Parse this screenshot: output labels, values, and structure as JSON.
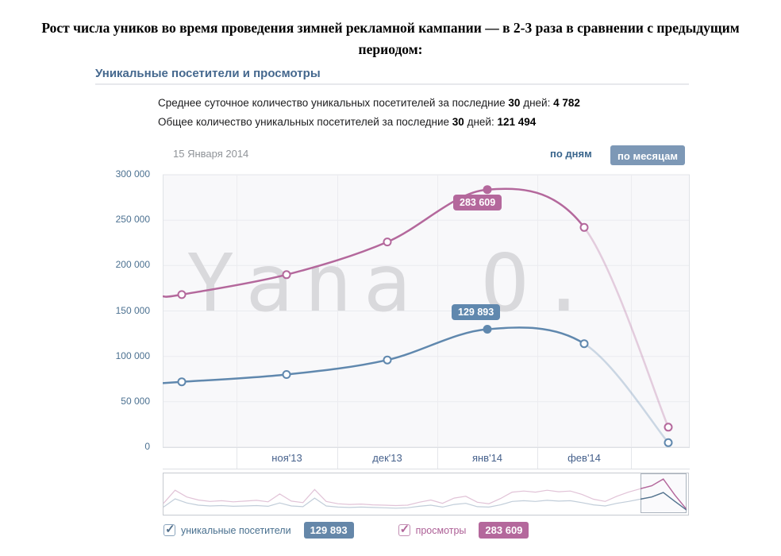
{
  "title": {
    "text": "Рост числа уников во время проведения зимней рекламной кампании — в 2-3 раза в сравнении с предыдущим периодом:"
  },
  "section": {
    "header": "Уникальные посетители и просмотры"
  },
  "stats": {
    "avg": {
      "text": "Среднее суточное количество уникальных посетителей за последние ",
      "days": "30",
      "after_days": " дней: ",
      "value": "4 782"
    },
    "total": {
      "text": "Общее количество уникальных посетителей за последние ",
      "days": "30",
      "after_days": " дней: ",
      "value": "121 494"
    }
  },
  "controls": {
    "date": "15 Января 2014",
    "by_days": "по дням",
    "by_months": "по месяцам"
  },
  "watermark": "Yana O.",
  "icons": {
    "check": "✓"
  },
  "chart_data": {
    "type": "line",
    "title": "Уникальные посетители и просмотры",
    "x_labels": [
      "ноя'13",
      "дек'13",
      "янв'14",
      "фев'14"
    ],
    "y_ticks": [
      "300 000",
      "250 000",
      "200 000",
      "150 000",
      "100 000",
      "50 000",
      "0"
    ],
    "ylim": [
      0,
      300000
    ],
    "grid": true,
    "legend_position": "bottom",
    "highlight_index": 3,
    "series": [
      {
        "name": "просмотры",
        "color": "#b4689c",
        "edge": 166000,
        "values": [
          168000,
          190000,
          226000,
          283609,
          242000,
          22000
        ],
        "label": "283 609"
      },
      {
        "name": "уникальные посетители",
        "color": "#6088ae",
        "edge": 70500,
        "values": [
          72000,
          80000,
          96000,
          129893,
          114000,
          5000
        ],
        "label": "129 893"
      }
    ]
  },
  "legend": [
    {
      "label": "уникальные посетители",
      "value": "129 893"
    },
    {
      "label": "просмотры",
      "value": "283 609"
    }
  ],
  "navigator": {
    "views": [
      0.77,
      0.42,
      0.6,
      0.68,
      0.72,
      0.7,
      0.73,
      0.71,
      0.69,
      0.73,
      0.52,
      0.71,
      0.75,
      0.4,
      0.72,
      0.78,
      0.8,
      0.79,
      0.81,
      0.82,
      0.83,
      0.82,
      0.74,
      0.68,
      0.77,
      0.63,
      0.58,
      0.74,
      0.78,
      0.64,
      0.47,
      0.44,
      0.47,
      0.42,
      0.46,
      0.44,
      0.53,
      0.66,
      0.72,
      0.58,
      0.47,
      0.38,
      0.3,
      0.12,
      0.55,
      0.93
    ],
    "visitors": [
      0.87,
      0.65,
      0.76,
      0.82,
      0.84,
      0.83,
      0.85,
      0.84,
      0.83,
      0.85,
      0.76,
      0.84,
      0.86,
      0.63,
      0.84,
      0.87,
      0.88,
      0.87,
      0.88,
      0.89,
      0.9,
      0.89,
      0.85,
      0.82,
      0.87,
      0.8,
      0.77,
      0.86,
      0.87,
      0.81,
      0.72,
      0.7,
      0.72,
      0.69,
      0.71,
      0.7,
      0.75,
      0.81,
      0.84,
      0.77,
      0.72,
      0.66,
      0.6,
      0.48,
      0.72,
      0.95
    ]
  }
}
